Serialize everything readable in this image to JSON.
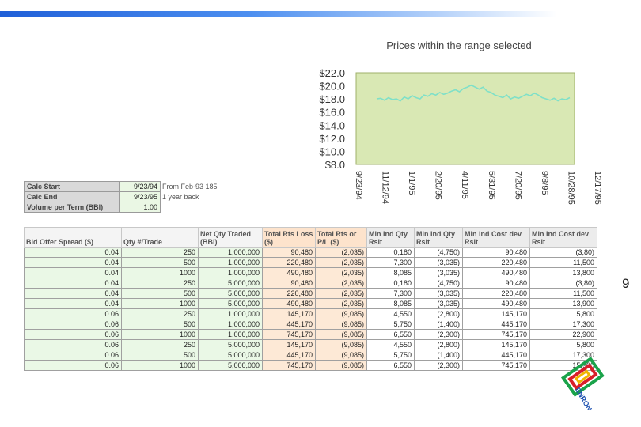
{
  "chart_title": "Prices within the range selected",
  "chart_data": {
    "type": "line",
    "title": "Prices within the range selected",
    "y_ticks": [
      "$22.0",
      "$20.0",
      "$18.0",
      "$16.0",
      "$14.0",
      "$12.0",
      "$10.0",
      "$8.0"
    ],
    "ylim": [
      8,
      22
    ],
    "x_ticks": [
      "9/23/94",
      "11/12/94",
      "1/1/95",
      "2/20/95",
      "4/11/95",
      "5/31/95",
      "7/20/95",
      "9/8/95",
      "10/28/95",
      "12/17/95"
    ],
    "series": [
      {
        "values": [
          18.0,
          18.1,
          17.8,
          18.2,
          17.9,
          18.0,
          17.7,
          18.3,
          18.0,
          18.5,
          18.2,
          18.0,
          18.6,
          18.4,
          18.8,
          18.6,
          19.0,
          18.7,
          18.9,
          19.2,
          19.4,
          19.1,
          19.6,
          19.8,
          20.1,
          19.8,
          19.5,
          19.8,
          19.2,
          19.0,
          18.6,
          18.4,
          18.2,
          18.6,
          18.0,
          18.3,
          18.1,
          18.4,
          18.7,
          18.5,
          18.9,
          18.6,
          18.2,
          18.0,
          17.8,
          18.1,
          17.7,
          18.0,
          17.9,
          18.2
        ],
        "color": "#7fe0c8"
      }
    ],
    "plot_bg": "#d9e8b4",
    "grid": false
  },
  "params": [
    {
      "label": "Calc Start",
      "value": "9/23/94",
      "note": "From Feb-93 185"
    },
    {
      "label": "Calc End",
      "value": "9/23/95",
      "note": "1 year back"
    },
    {
      "label": "Volume per Term (BBl)",
      "value": "1.00",
      "note": ""
    }
  ],
  "table": {
    "headers": [
      "Bid Offer Spread ($)",
      "Qty #/Trade",
      "Net Qty Traded (BBl)",
      "Total Rts Loss ($)",
      "Total Rts or P/L ($)",
      "Min Ind Qty Rslt",
      "Min Ind Qty Rslt",
      "Min Ind Cost dev Rslt",
      "Min Ind Cost dev Rslt"
    ],
    "rows": [
      [
        "0.04",
        "250",
        "1,000,000",
        "90,480",
        "(2,035)",
        "0,180",
        "(4,750)",
        "90,480",
        "(3,80)"
      ],
      [
        "0.04",
        "500",
        "1,000,000",
        "220,480",
        "(2,035)",
        "7,300",
        "(3,035)",
        "220,480",
        "11,500"
      ],
      [
        "0.04",
        "1000",
        "1,000,000",
        "490,480",
        "(2,035)",
        "8,085",
        "(3,035)",
        "490,480",
        "13,800"
      ],
      [
        "0.04",
        "250",
        "5,000,000",
        "90,480",
        "(2,035)",
        "0,180",
        "(4,750)",
        "90,480",
        "(3,80)"
      ],
      [
        "0.04",
        "500",
        "5,000,000",
        "220,480",
        "(2,035)",
        "7,300",
        "(3,035)",
        "220,480",
        "11,500"
      ],
      [
        "0.04",
        "1000",
        "5,000,000",
        "490,480",
        "(2,035)",
        "8,085",
        "(3,035)",
        "490,480",
        "13,900"
      ],
      [
        "0.06",
        "250",
        "1,000,000",
        "145,170",
        "(9,085)",
        "4,550",
        "(2,800)",
        "145,170",
        "5,800"
      ],
      [
        "0.06",
        "500",
        "1,000,000",
        "445,170",
        "(9,085)",
        "5,750",
        "(1,400)",
        "445,170",
        "17,300"
      ],
      [
        "0.06",
        "1000",
        "1,000,000",
        "745,170",
        "(9,085)",
        "6,550",
        "(2,300)",
        "745,170",
        "22,900"
      ],
      [
        "0.06",
        "250",
        "5,000,000",
        "145,170",
        "(9,085)",
        "4,550",
        "(2,800)",
        "145,170",
        "5,800"
      ],
      [
        "0.06",
        "500",
        "5,000,000",
        "445,170",
        "(9,085)",
        "5,750",
        "(1,400)",
        "445,170",
        "17,300"
      ],
      [
        "0.06",
        "1000",
        "5,000,000",
        "745,170",
        "(9,085)",
        "6,550",
        "(2,300)",
        "745,170",
        "15,900"
      ]
    ]
  },
  "page_number": "9",
  "logo_text": "ENRON"
}
